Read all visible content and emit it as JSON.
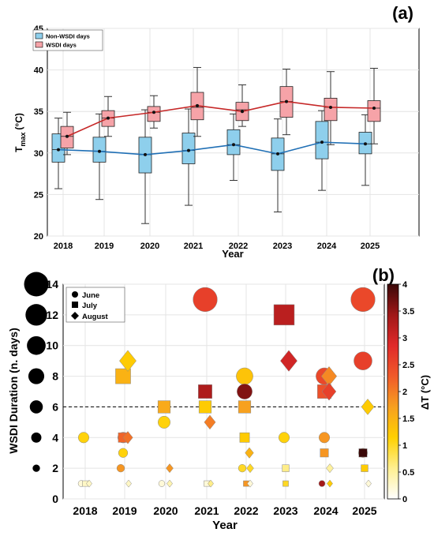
{
  "chart_data": [
    {
      "panel_label": "(a)",
      "type": "box",
      "x_ticks": [
        "2018",
        "2019",
        "2020",
        "2021",
        "2022",
        "2023",
        "2024",
        "2025"
      ],
      "xlabel": "Year",
      "ylabel_main": "T",
      "ylabel_sub": "max",
      "ylabel_unit": "(°C)",
      "ylim": [
        20,
        45
      ],
      "y_ticks": [
        20,
        25,
        30,
        35,
        40,
        45
      ],
      "grid": true,
      "legend_position": "top-left",
      "series": [
        {
          "name": "Non-WSDI days",
          "color": "#8ecfec",
          "line_color": "#1f6fb5",
          "boxes": [
            {
              "min": 25.7,
              "q1": 28.9,
              "median": 30.4,
              "q3": 32.3,
              "max": 34.2,
              "mean": 30.4
            },
            {
              "min": 24.4,
              "q1": 28.9,
              "median": 30.2,
              "q3": 31.9,
              "max": 34.7,
              "mean": 30.2
            },
            {
              "min": 21.5,
              "q1": 27.6,
              "median": 29.8,
              "q3": 31.9,
              "max": 35.2,
              "mean": 29.8
            },
            {
              "min": 23.7,
              "q1": 28.7,
              "median": 30.3,
              "q3": 32.4,
              "max": 35.3,
              "mean": 30.3
            },
            {
              "min": 26.7,
              "q1": 29.8,
              "median": 31.0,
              "q3": 32.8,
              "max": 34.7,
              "mean": 31.0
            },
            {
              "min": 22.9,
              "q1": 27.9,
              "median": 29.9,
              "q3": 31.8,
              "max": 34.1,
              "mean": 29.9
            },
            {
              "min": 25.5,
              "q1": 29.3,
              "median": 31.3,
              "q3": 33.8,
              "max": 35.1,
              "mean": 31.3
            },
            {
              "min": 26.1,
              "q1": 29.9,
              "median": 31.1,
              "q3": 32.5,
              "max": 34.6,
              "mean": 31.1
            }
          ]
        },
        {
          "name": "WSDI days",
          "color": "#f6a3a8",
          "line_color": "#c62828",
          "boxes": [
            {
              "min": 29.8,
              "q1": 30.6,
              "median": 32.0,
              "q3": 33.2,
              "max": 34.9,
              "mean": 32.0
            },
            {
              "min": 32.0,
              "q1": 33.2,
              "median": 34.2,
              "q3": 35.1,
              "max": 36.8,
              "mean": 34.2
            },
            {
              "min": 33.0,
              "q1": 33.8,
              "median": 34.9,
              "q3": 35.6,
              "max": 36.9,
              "mean": 34.9
            },
            {
              "min": 32.0,
              "q1": 34.0,
              "median": 35.5,
              "q3": 37.3,
              "max": 40.3,
              "mean": 35.7
            },
            {
              "min": 33.2,
              "q1": 33.9,
              "median": 35.2,
              "q3": 36.1,
              "max": 38.2,
              "mean": 35.0
            },
            {
              "min": 32.2,
              "q1": 34.3,
              "median": 36.2,
              "q3": 38.0,
              "max": 40.1,
              "mean": 36.2
            },
            {
              "min": 31.0,
              "q1": 33.9,
              "median": 35.5,
              "q3": 36.6,
              "max": 39.8,
              "mean": 35.5
            },
            {
              "min": 31.1,
              "q1": 33.8,
              "median": 35.4,
              "q3": 36.3,
              "max": 40.2,
              "mean": 35.4
            }
          ]
        }
      ]
    },
    {
      "panel_label": "(b)",
      "type": "scatter",
      "x_ticks": [
        "2018",
        "2019",
        "2020",
        "2021",
        "2022",
        "2023",
        "2024",
        "2025"
      ],
      "xlabel": "Year",
      "ylabel": "WSDI Duration (n. days)",
      "ylim": [
        0,
        14
      ],
      "y_ticks": [
        0,
        2,
        4,
        6,
        8,
        10,
        12,
        14
      ],
      "grid": true,
      "threshold_line": 6,
      "legend_position": "top-left",
      "legend_entries": [
        {
          "label": "June",
          "marker": "circle"
        },
        {
          "label": "July",
          "marker": "square"
        },
        {
          "label": "August",
          "marker": "diamond"
        }
      ],
      "size_legend_values": [
        14,
        12,
        10,
        8,
        6,
        4,
        2
      ],
      "colorbar": {
        "label": "ΔT (°C)",
        "min": 0,
        "max": 4,
        "ticks": [
          "0",
          "0.5",
          "1",
          "1.5",
          "2",
          "2.5",
          "3",
          "3.5",
          "4"
        ],
        "stops": [
          "#ffffff",
          "#ffef90",
          "#ffd000",
          "#f7a020",
          "#f05a2a",
          "#e02a2a",
          "#a01818",
          "#3a0808"
        ]
      },
      "points": [
        {
          "year": 2018,
          "month": "June",
          "dur": 4,
          "dt": 1.1
        },
        {
          "year": 2018,
          "month": "June",
          "dur": 1,
          "dt": 0.2
        },
        {
          "year": 2018,
          "month": "July",
          "dur": 1,
          "dt": 0.3
        },
        {
          "year": 2018,
          "month": "August",
          "dur": 1,
          "dt": 0.3
        },
        {
          "year": 2019,
          "month": "June",
          "dur": 4,
          "dt": 2.2
        },
        {
          "year": 2019,
          "month": "July",
          "dur": 4,
          "dt": 2.2
        },
        {
          "year": 2019,
          "month": "August",
          "dur": 4,
          "dt": 2.1
        },
        {
          "year": 2019,
          "month": "June",
          "dur": 3,
          "dt": 1.1
        },
        {
          "year": 2019,
          "month": "June",
          "dur": 2,
          "dt": 1.8
        },
        {
          "year": 2019,
          "month": "July",
          "dur": 8,
          "dt": 1.5
        },
        {
          "year": 2019,
          "month": "August",
          "dur": 9,
          "dt": 1.2
        },
        {
          "year": 2019,
          "month": "August",
          "dur": 1,
          "dt": 0.3
        },
        {
          "year": 2020,
          "month": "June",
          "dur": 5,
          "dt": 1.1
        },
        {
          "year": 2020,
          "month": "July",
          "dur": 6,
          "dt": 1.6
        },
        {
          "year": 2020,
          "month": "August",
          "dur": 2,
          "dt": 1.8
        },
        {
          "year": 2020,
          "month": "June",
          "dur": 1,
          "dt": 0.2
        },
        {
          "year": 2020,
          "month": "August",
          "dur": 1,
          "dt": 0.4
        },
        {
          "year": 2021,
          "month": "June",
          "dur": 13,
          "dt": 2.6
        },
        {
          "year": 2021,
          "month": "July",
          "dur": 7,
          "dt": 3.3
        },
        {
          "year": 2021,
          "month": "July",
          "dur": 6,
          "dt": 1.2
        },
        {
          "year": 2021,
          "month": "August",
          "dur": 5,
          "dt": 2.0
        },
        {
          "year": 2021,
          "month": "July",
          "dur": 1,
          "dt": 0.2
        },
        {
          "year": 2021,
          "month": "August",
          "dur": 1,
          "dt": 0.6
        },
        {
          "year": 2022,
          "month": "June",
          "dur": 8,
          "dt": 1.3
        },
        {
          "year": 2022,
          "month": "June",
          "dur": 7,
          "dt": 3.6
        },
        {
          "year": 2022,
          "month": "July",
          "dur": 6,
          "dt": 1.7
        },
        {
          "year": 2022,
          "month": "July",
          "dur": 4,
          "dt": 1.2
        },
        {
          "year": 2022,
          "month": "August",
          "dur": 3,
          "dt": 1.5
        },
        {
          "year": 2022,
          "month": "June",
          "dur": 2,
          "dt": 1.0
        },
        {
          "year": 2022,
          "month": "August",
          "dur": 2,
          "dt": 1.0
        },
        {
          "year": 2022,
          "month": "July",
          "dur": 1,
          "dt": 1.8
        },
        {
          "year": 2022,
          "month": "August",
          "dur": 1,
          "dt": 0.2
        },
        {
          "year": 2023,
          "month": "July",
          "dur": 12,
          "dt": 3.2
        },
        {
          "year": 2023,
          "month": "August",
          "dur": 9,
          "dt": 3.0
        },
        {
          "year": 2023,
          "month": "June",
          "dur": 4,
          "dt": 1.1
        },
        {
          "year": 2023,
          "month": "July",
          "dur": 2,
          "dt": 0.6
        },
        {
          "year": 2023,
          "month": "July",
          "dur": 1,
          "dt": 1.0
        },
        {
          "year": 2024,
          "month": "June",
          "dur": 8,
          "dt": 2.5
        },
        {
          "year": 2024,
          "month": "August",
          "dur": 8,
          "dt": 1.9
        },
        {
          "year": 2024,
          "month": "July",
          "dur": 7,
          "dt": 2.4
        },
        {
          "year": 2024,
          "month": "August",
          "dur": 7,
          "dt": 2.6
        },
        {
          "year": 2024,
          "month": "June",
          "dur": 4,
          "dt": 1.8
        },
        {
          "year": 2024,
          "month": "July",
          "dur": 3,
          "dt": 1.8
        },
        {
          "year": 2024,
          "month": "August",
          "dur": 2,
          "dt": 0.5
        },
        {
          "year": 2024,
          "month": "June",
          "dur": 1,
          "dt": 3.4
        },
        {
          "year": 2024,
          "month": "August",
          "dur": 1,
          "dt": 1.2
        },
        {
          "year": 2025,
          "month": "June",
          "dur": 13,
          "dt": 2.5
        },
        {
          "year": 2025,
          "month": "June",
          "dur": 9,
          "dt": 2.6
        },
        {
          "year": 2025,
          "month": "August",
          "dur": 6,
          "dt": 1.2
        },
        {
          "year": 2025,
          "month": "June",
          "dur": 3,
          "dt": 1.8
        },
        {
          "year": 2025,
          "month": "July",
          "dur": 3,
          "dt": 4.0
        },
        {
          "year": 2025,
          "month": "July",
          "dur": 2,
          "dt": 1.2
        },
        {
          "year": 2025,
          "month": "August",
          "dur": 1,
          "dt": 0.2
        }
      ]
    }
  ]
}
